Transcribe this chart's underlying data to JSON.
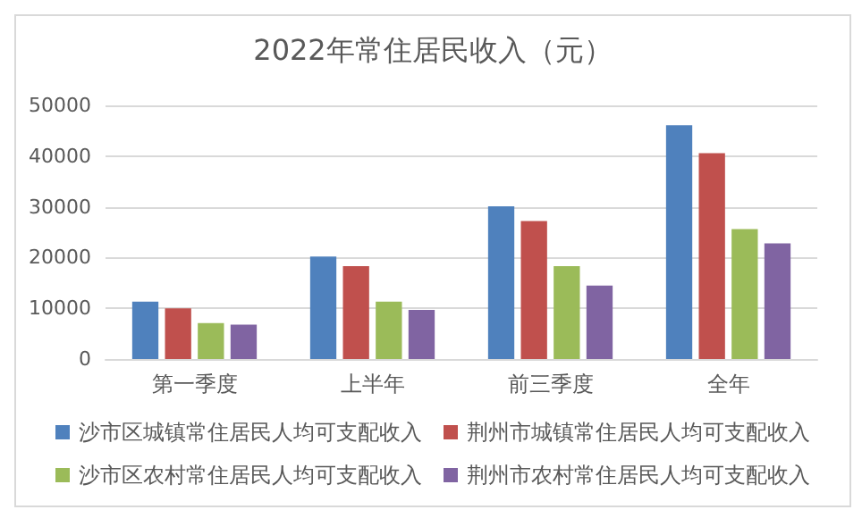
{
  "chart_data": {
    "type": "bar",
    "title": "2022年常住居民收入（元）",
    "categories": [
      "第一季度",
      "上半年",
      "前三季度",
      "全年"
    ],
    "series": [
      {
        "name": "沙市区城镇常住居民人均可支配收入",
        "color": "#4f81bd",
        "values": [
          11300,
          20200,
          30100,
          46100
        ]
      },
      {
        "name": "荆州市城镇常住居民人均可支配收入",
        "color": "#c0504d",
        "values": [
          10000,
          18300,
          27200,
          40600
        ]
      },
      {
        "name": "沙市区农村常住居民人均可支配收入",
        "color": "#9bbb59",
        "values": [
          7100,
          11300,
          18300,
          25600
        ]
      },
      {
        "name": "荆州市农村常住居民人均可支配收入",
        "color": "#8064a2",
        "values": [
          6800,
          9700,
          14500,
          22800
        ]
      }
    ],
    "ylim": [
      0,
      50000
    ],
    "yticks": [
      0,
      10000,
      20000,
      30000,
      40000,
      50000
    ],
    "grid": "y",
    "legend": "bottom"
  }
}
